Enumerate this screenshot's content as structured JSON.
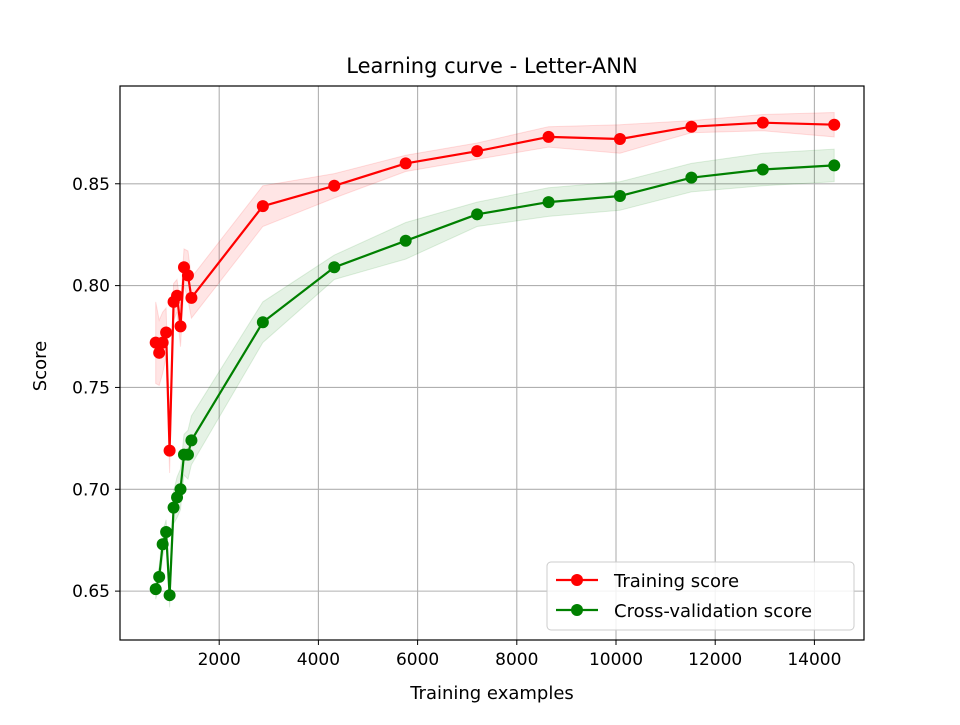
{
  "chart_data": {
    "type": "line",
    "title": "Learning curve - Letter-ANN",
    "xlabel": "Training examples",
    "ylabel": "Score",
    "xlim": [
      0,
      15000
    ],
    "ylim": [
      0.626,
      0.898
    ],
    "xticks": [
      2000,
      4000,
      6000,
      8000,
      10000,
      12000,
      14000
    ],
    "xtick_labels": [
      "2000",
      "4000",
      "6000",
      "8000",
      "10000",
      "12000",
      "14000"
    ],
    "yticks": [
      0.65,
      0.7,
      0.75,
      0.8,
      0.85
    ],
    "ytick_labels": [
      "0.65",
      "0.70",
      "0.75",
      "0.80",
      "0.85"
    ],
    "grid": true,
    "legend_position": "lower-right",
    "x": [
      720,
      790,
      860,
      930,
      1000,
      1080,
      1150,
      1220,
      1290,
      1370,
      1440,
      2880,
      4320,
      5760,
      7200,
      8640,
      10080,
      11520,
      12960,
      14400
    ],
    "series": [
      {
        "name": "Training score",
        "color": "#ff0000",
        "values": [
          0.772,
          0.767,
          0.772,
          0.777,
          0.719,
          0.792,
          0.795,
          0.78,
          0.809,
          0.805,
          0.794,
          0.839,
          0.849,
          0.86,
          0.866,
          0.873,
          0.872,
          0.878,
          0.88,
          0.879
        ],
        "std": [
          0.02,
          0.016,
          0.015,
          0.012,
          0.011,
          0.009,
          0.008,
          0.01,
          0.009,
          0.012,
          0.01,
          0.01,
          0.006,
          0.004,
          0.004,
          0.005,
          0.007,
          0.003,
          0.004,
          0.006
        ]
      },
      {
        "name": "Cross-validation score",
        "color": "#008000",
        "values": [
          0.651,
          0.657,
          0.673,
          0.679,
          0.648,
          0.691,
          0.696,
          0.7,
          0.717,
          0.717,
          0.724,
          0.782,
          0.809,
          0.822,
          0.835,
          0.841,
          0.844,
          0.853,
          0.857,
          0.859
        ],
        "std": [
          0.005,
          0.005,
          0.006,
          0.006,
          0.006,
          0.008,
          0.01,
          0.01,
          0.01,
          0.012,
          0.012,
          0.01,
          0.006,
          0.009,
          0.006,
          0.007,
          0.007,
          0.007,
          0.008,
          0.008
        ]
      }
    ]
  }
}
